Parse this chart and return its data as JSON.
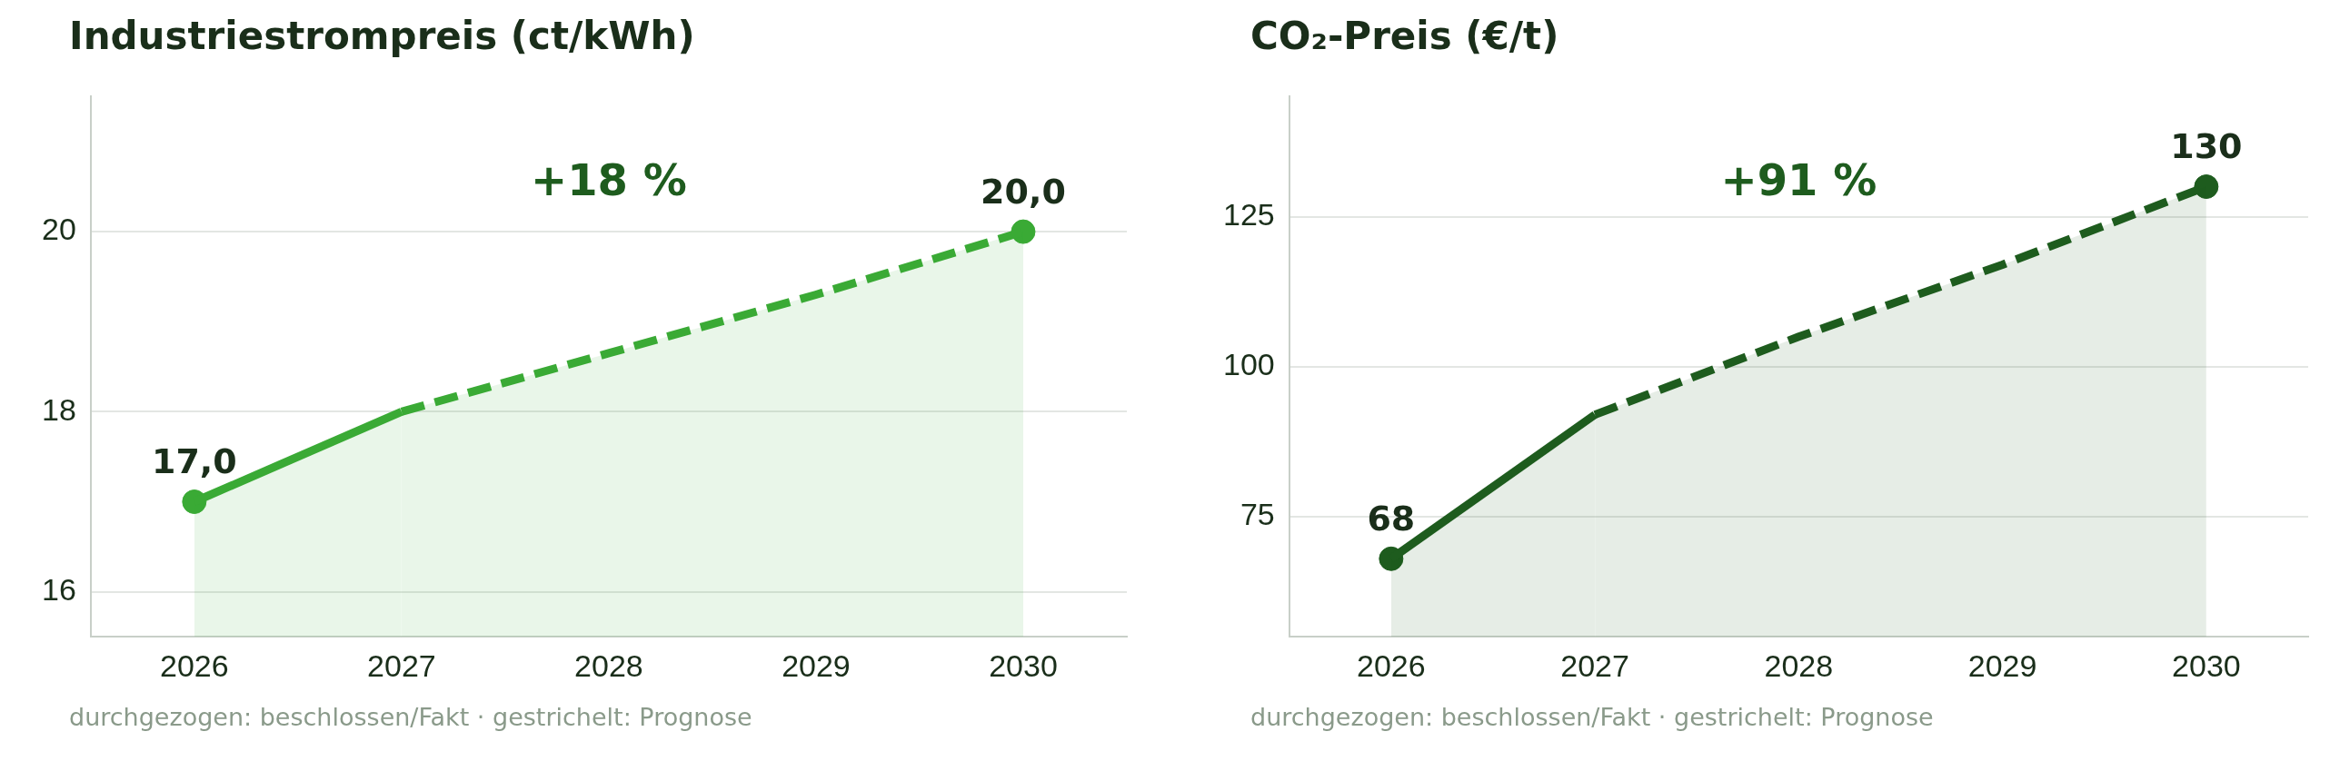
{
  "chart_data": [
    {
      "type": "area",
      "title": "Industriestrompreis (ct/kWh)",
      "categories": [
        "2026",
        "2027",
        "2028",
        "2029",
        "2030"
      ],
      "series": [
        {
          "type": "area",
          "color": "#3aaa35",
          "line_style": "solid",
          "values": [
            17.0,
            18.0,
            null,
            null,
            null
          ]
        },
        {
          "type": "area",
          "color": "#3aaa35",
          "line_style": "dashed",
          "values": [
            null,
            18.0,
            18.65,
            19.3,
            20.0
          ]
        },
        {
          "type": "scatter",
          "color": "#3aaa35",
          "marker": "circle",
          "values": [
            17.0,
            null,
            null,
            null,
            20.0
          ],
          "value_labels": [
            "17,0",
            null,
            null,
            null,
            "20,0"
          ]
        }
      ],
      "ylim": [
        15.5,
        21.5
      ],
      "yticks": [
        16,
        18,
        20
      ],
      "grid": "y",
      "legend": false,
      "annotations": [
        "+18 %",
        "durchgezogen: beschlossen/Fakt · gestrichelt: Prognose"
      ]
    },
    {
      "type": "area",
      "title": "CO₂-Preis (€/t)",
      "categories": [
        "2026",
        "2027",
        "2028",
        "2029",
        "2030"
      ],
      "series": [
        {
          "type": "area",
          "color": "#1e5c1e",
          "line_style": "solid",
          "values": [
            68,
            92,
            null,
            null,
            null
          ]
        },
        {
          "type": "area",
          "color": "#1e5c1e",
          "line_style": "dashed",
          "values": [
            null,
            92,
            105,
            117,
            130
          ]
        },
        {
          "type": "scatter",
          "color": "#1e5c1e",
          "marker": "circle",
          "values": [
            68,
            null,
            null,
            null,
            130
          ],
          "value_labels": [
            "68",
            null,
            null,
            null,
            "130"
          ]
        }
      ],
      "ylim": [
        55,
        145
      ],
      "yticks": [
        75,
        100,
        125
      ],
      "grid": "y",
      "legend": false,
      "annotations": [
        "+91 %",
        "durchgezogen: beschlossen/Fakt · gestrichelt: Prognose"
      ]
    }
  ]
}
